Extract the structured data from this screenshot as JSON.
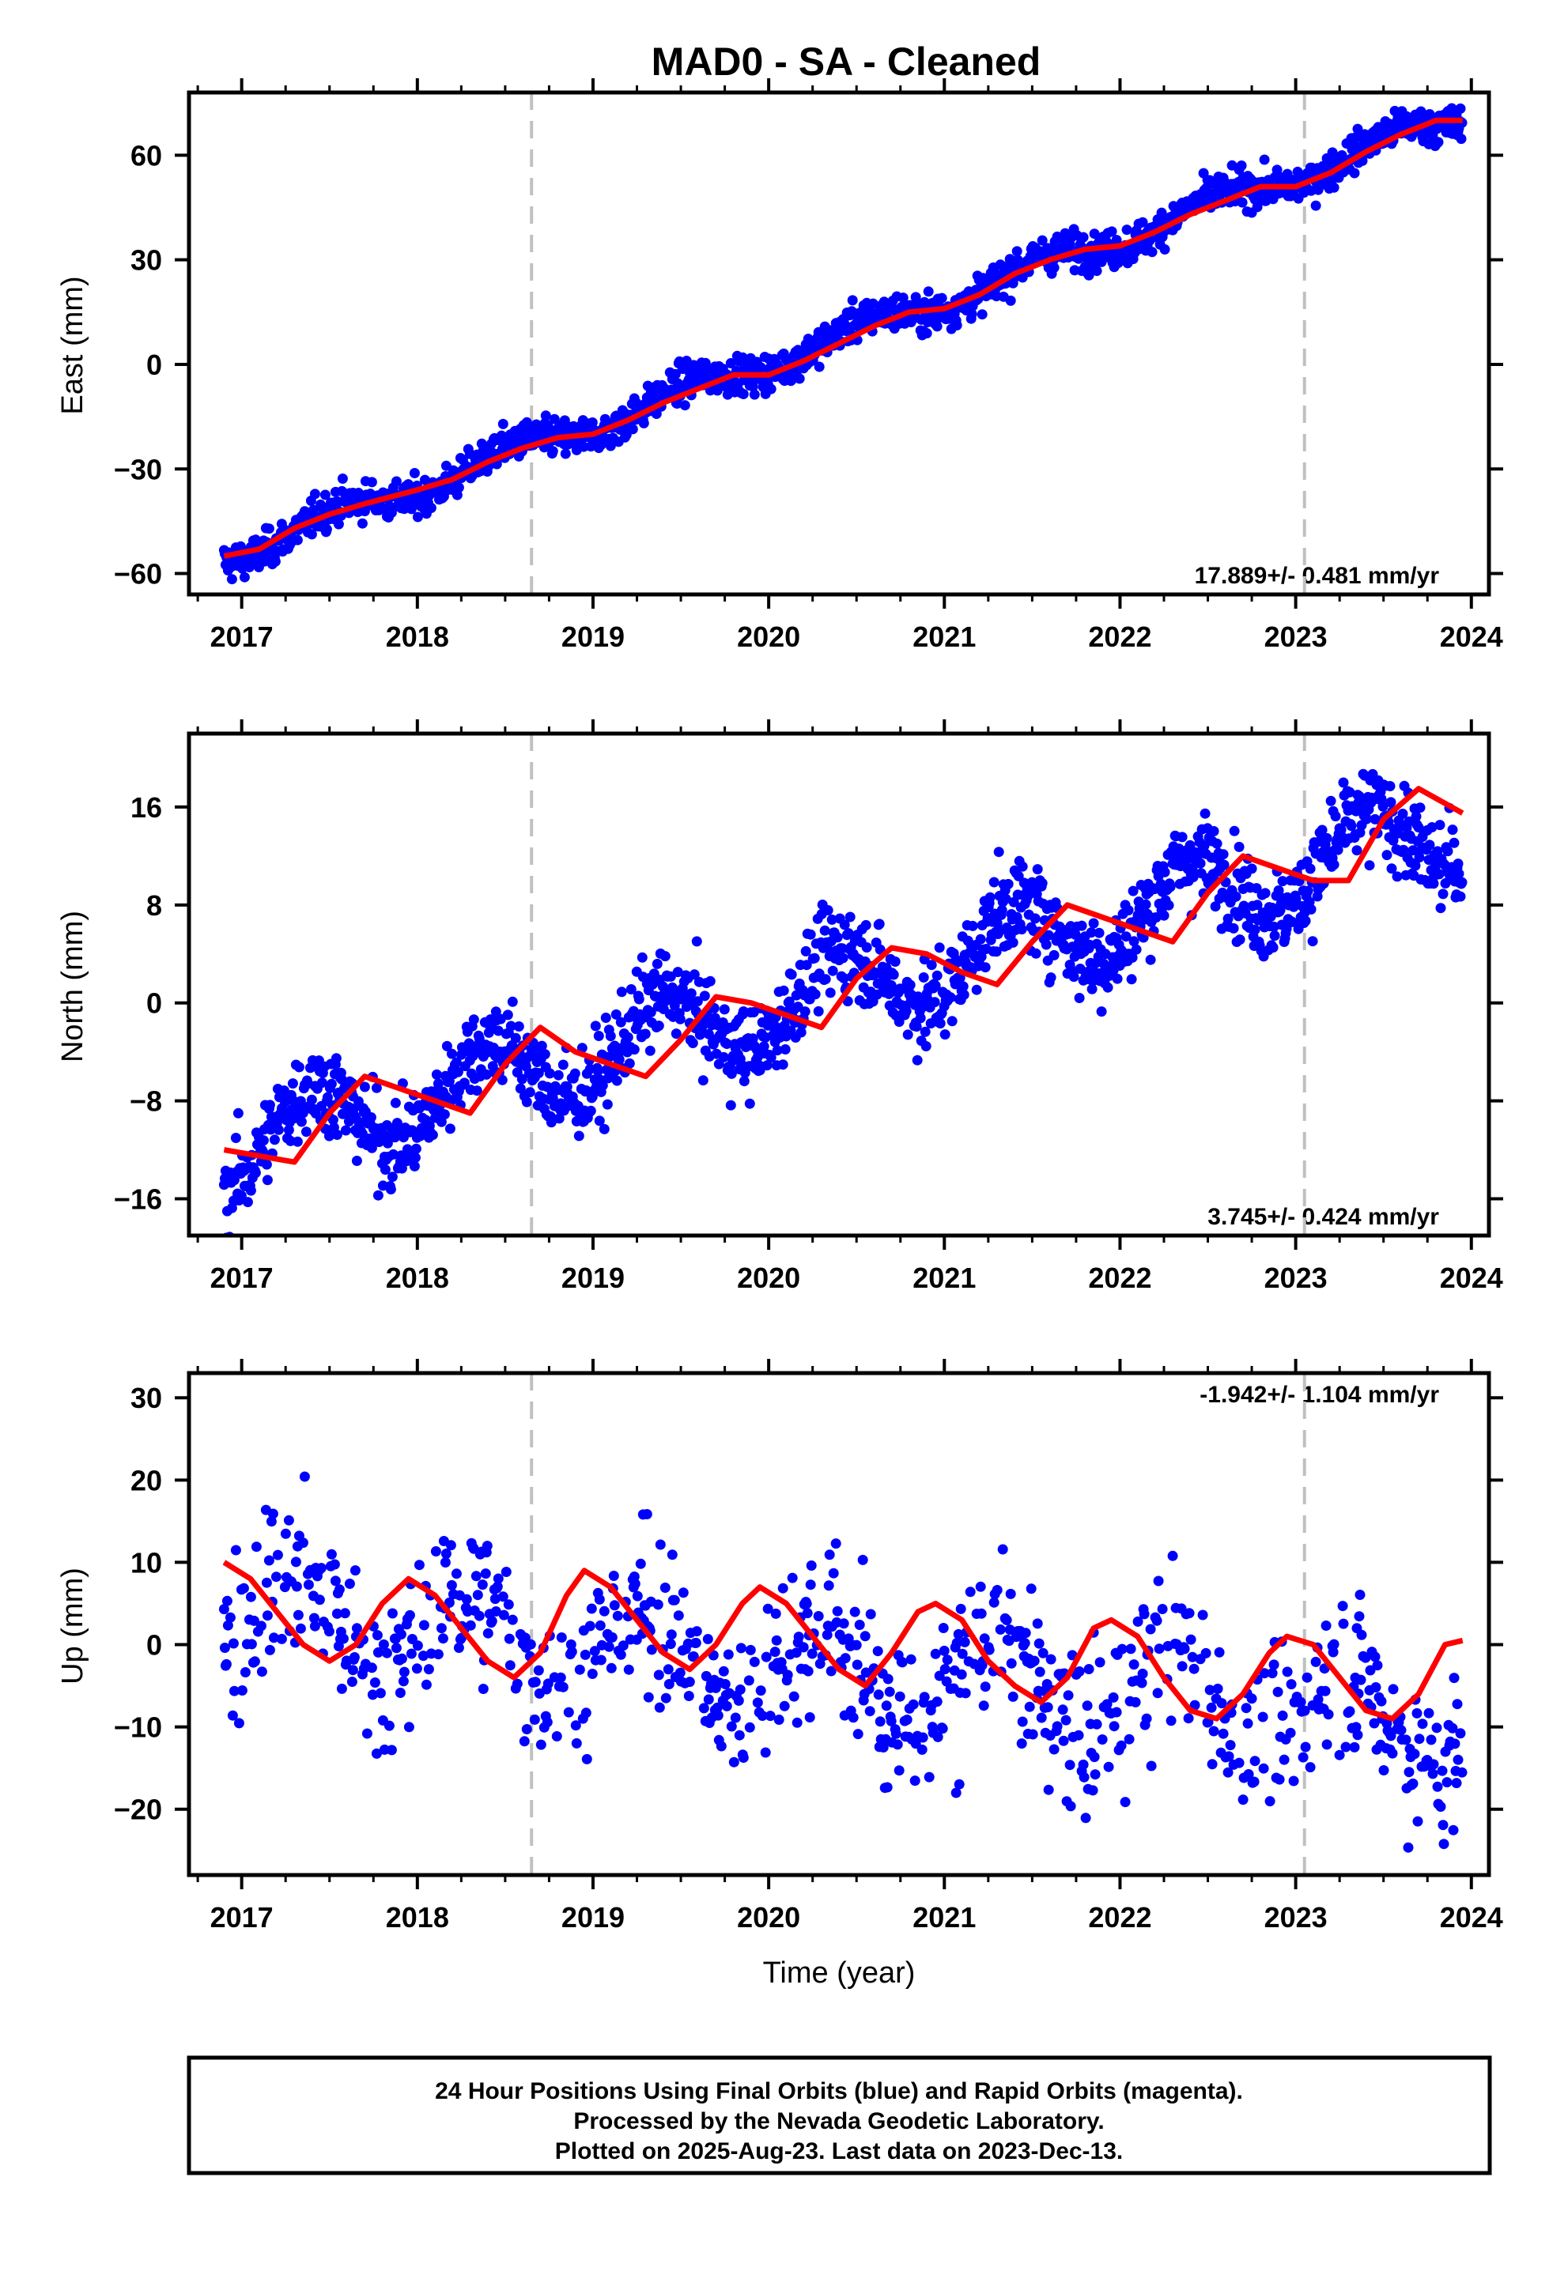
{
  "title": "MAD0  - SA - Cleaned",
  "colors": {
    "final_orbits": "#0000ff",
    "model_fit": "#ff0000",
    "marker_line": "#c0c0c0"
  },
  "footer": {
    "line1": "24 Hour Positions Using Final Orbits (blue) and Rapid Orbits (magenta).",
    "line2": "Processed by the Nevada Geodetic Laboratory.",
    "line3": "Plotted on 2025-Aug-23. Last data on 2023-Dec-13."
  },
  "chart_data": [
    {
      "type": "scatter",
      "component": "east",
      "ylabel": "East (mm)",
      "xlabel": "",
      "rate_label": "17.889+/- 0.481 mm/yr",
      "xlim": [
        2016.7,
        2024.1
      ],
      "ylim": [
        -66,
        78
      ],
      "xticks": [
        2017,
        2018,
        2019,
        2020,
        2021,
        2022,
        2023,
        2024
      ],
      "yticks": [
        -60,
        -30,
        0,
        30,
        60
      ],
      "markers": [
        2018.65,
        2023.05
      ],
      "data_range": [
        2016.9,
        2023.95
      ],
      "trend": {
        "y_at_start": -55,
        "rate": 17.889,
        "annual": 3.0,
        "phase": 0.3,
        "noise": 2.6
      },
      "model_fit": [
        [
          2016.9,
          -55
        ],
        [
          2017.1,
          -53
        ],
        [
          2017.3,
          -47
        ],
        [
          2017.5,
          -43
        ],
        [
          2017.7,
          -40
        ],
        [
          2018.0,
          -36
        ],
        [
          2018.2,
          -33
        ],
        [
          2018.4,
          -28
        ],
        [
          2018.6,
          -24
        ],
        [
          2018.8,
          -21
        ],
        [
          2019.0,
          -20
        ],
        [
          2019.2,
          -16
        ],
        [
          2019.4,
          -11
        ],
        [
          2019.6,
          -7
        ],
        [
          2019.8,
          -3
        ],
        [
          2020.0,
          -3
        ],
        [
          2020.2,
          1
        ],
        [
          2020.4,
          6
        ],
        [
          2020.6,
          11
        ],
        [
          2020.8,
          15
        ],
        [
          2021.0,
          16
        ],
        [
          2021.2,
          20
        ],
        [
          2021.4,
          26
        ],
        [
          2021.6,
          30
        ],
        [
          2021.8,
          33
        ],
        [
          2022.0,
          34
        ],
        [
          2022.2,
          38
        ],
        [
          2022.4,
          43
        ],
        [
          2022.6,
          47
        ],
        [
          2022.8,
          51
        ],
        [
          2023.0,
          51
        ],
        [
          2023.2,
          55
        ],
        [
          2023.4,
          61
        ],
        [
          2023.6,
          66
        ],
        [
          2023.8,
          70
        ],
        [
          2023.95,
          70
        ]
      ]
    },
    {
      "type": "scatter",
      "component": "north",
      "ylabel": "North (mm)",
      "xlabel": "",
      "rate_label": "3.745+/- 0.424 mm/yr",
      "xlim": [
        2016.7,
        2024.1
      ],
      "ylim": [
        -19,
        22
      ],
      "xticks": [
        2017,
        2018,
        2019,
        2020,
        2021,
        2022,
        2023,
        2024
      ],
      "yticks": [
        -16,
        -8,
        0,
        8,
        16
      ],
      "markers": [
        2018.65,
        2023.05
      ],
      "data_range": [
        2016.9,
        2023.95
      ],
      "trend": {
        "y_at_start": -12,
        "rate": 3.745,
        "annual": 3.2,
        "phase": 0.15,
        "noise": 1.8
      },
      "model_fit": [
        [
          2016.9,
          -12
        ],
        [
          2017.1,
          -12.5
        ],
        [
          2017.3,
          -13
        ],
        [
          2017.5,
          -9
        ],
        [
          2017.7,
          -6
        ],
        [
          2017.9,
          -7
        ],
        [
          2018.1,
          -8
        ],
        [
          2018.3,
          -9
        ],
        [
          2018.5,
          -5
        ],
        [
          2018.7,
          -2
        ],
        [
          2018.9,
          -4
        ],
        [
          2019.1,
          -5
        ],
        [
          2019.3,
          -6
        ],
        [
          2019.5,
          -3
        ],
        [
          2019.7,
          0.5
        ],
        [
          2019.9,
          0
        ],
        [
          2020.1,
          -1
        ],
        [
          2020.3,
          -2
        ],
        [
          2020.5,
          2
        ],
        [
          2020.7,
          4.5
        ],
        [
          2020.9,
          4
        ],
        [
          2021.1,
          2.5
        ],
        [
          2021.3,
          1.5
        ],
        [
          2021.5,
          5
        ],
        [
          2021.7,
          8
        ],
        [
          2021.9,
          7
        ],
        [
          2022.1,
          6
        ],
        [
          2022.3,
          5
        ],
        [
          2022.5,
          9
        ],
        [
          2022.7,
          12
        ],
        [
          2022.9,
          11
        ],
        [
          2023.1,
          10
        ],
        [
          2023.3,
          10
        ],
        [
          2023.5,
          15
        ],
        [
          2023.7,
          17.5
        ],
        [
          2023.95,
          15.5
        ]
      ]
    },
    {
      "type": "scatter",
      "component": "up",
      "ylabel": "Up (mm)",
      "xlabel": "Time (year)",
      "rate_label": "-1.942+/- 1.104 mm/yr",
      "xlim": [
        2016.7,
        2024.1
      ],
      "ylim": [
        -28,
        33
      ],
      "xticks": [
        2017,
        2018,
        2019,
        2020,
        2021,
        2022,
        2023,
        2024
      ],
      "yticks": [
        -20,
        -10,
        0,
        10,
        20,
        30
      ],
      "markers": [
        2018.65,
        2023.05
      ],
      "data_range": [
        2016.9,
        2023.95
      ],
      "trend": {
        "y_at_start": 4,
        "rate": -1.942,
        "annual": 5.5,
        "phase": 0.05,
        "noise": 5.0
      },
      "model_fit": [
        [
          2016.9,
          10
        ],
        [
          2017.05,
          8
        ],
        [
          2017.2,
          4
        ],
        [
          2017.35,
          0
        ],
        [
          2017.5,
          -2
        ],
        [
          2017.65,
          0
        ],
        [
          2017.8,
          5
        ],
        [
          2017.95,
          8
        ],
        [
          2018.1,
          6
        ],
        [
          2018.25,
          2
        ],
        [
          2018.4,
          -2
        ],
        [
          2018.55,
          -4
        ],
        [
          2018.7,
          -1
        ],
        [
          2018.85,
          6
        ],
        [
          2018.95,
          9
        ],
        [
          2019.1,
          7
        ],
        [
          2019.25,
          3
        ],
        [
          2019.4,
          -1
        ],
        [
          2019.55,
          -3
        ],
        [
          2019.7,
          0
        ],
        [
          2019.85,
          5
        ],
        [
          2019.95,
          7
        ],
        [
          2020.1,
          5
        ],
        [
          2020.25,
          1
        ],
        [
          2020.4,
          -3
        ],
        [
          2020.55,
          -5
        ],
        [
          2020.7,
          -1
        ],
        [
          2020.85,
          4
        ],
        [
          2020.95,
          5
        ],
        [
          2021.1,
          3
        ],
        [
          2021.25,
          -2
        ],
        [
          2021.4,
          -5
        ],
        [
          2021.55,
          -7
        ],
        [
          2021.7,
          -4
        ],
        [
          2021.85,
          2
        ],
        [
          2021.95,
          3
        ],
        [
          2022.1,
          1
        ],
        [
          2022.25,
          -4
        ],
        [
          2022.4,
          -8
        ],
        [
          2022.55,
          -9
        ],
        [
          2022.7,
          -6
        ],
        [
          2022.85,
          -1
        ],
        [
          2022.95,
          1
        ],
        [
          2023.1,
          0
        ],
        [
          2023.25,
          -4
        ],
        [
          2023.4,
          -8
        ],
        [
          2023.55,
          -9
        ],
        [
          2023.7,
          -6
        ],
        [
          2023.85,
          0
        ],
        [
          2023.95,
          0.5
        ]
      ]
    }
  ]
}
